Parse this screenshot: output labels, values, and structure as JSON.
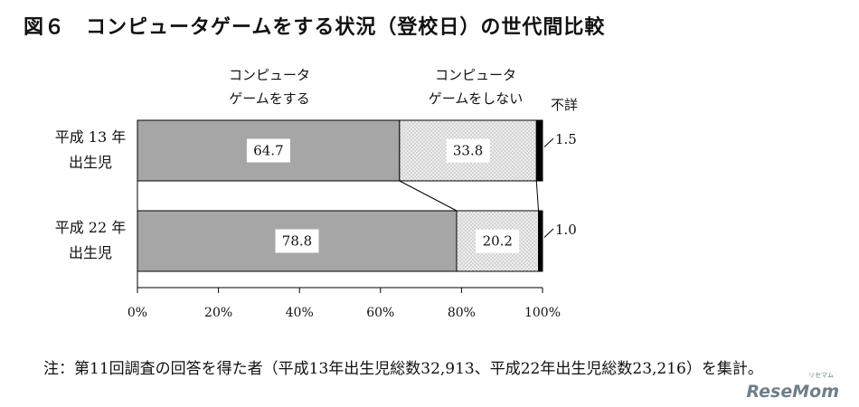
{
  "title": "図６　コンピュータゲームをする状況（登校日）の世代間比較",
  "footnote": "注：第11回調査の回答を得た者（平成13年出生児総数32,913、平成22年出生児総数23,216）を集計。",
  "watermark": "ReseMom",
  "watermark_sub": "リセマム",
  "chart_data": {
    "type": "bar",
    "orientation": "horizontal",
    "stacked": true,
    "title": "図６　コンピュータゲームをする状況（登校日）の世代間比較",
    "categories": [
      [
        "平成 13 年",
        "出生児"
      ],
      [
        "平成 22 年",
        "出生児"
      ]
    ],
    "series": [
      {
        "name": [
          "コンピュータ",
          "ゲームをする"
        ],
        "values": [
          64.7,
          78.8
        ],
        "color": "#a6a6a6"
      },
      {
        "name": [
          "コンピュータ",
          "ゲームをしない"
        ],
        "values": [
          33.8,
          20.2
        ],
        "color": "#ececec"
      },
      {
        "name": [
          "不詳"
        ],
        "values": [
          1.5,
          1.0
        ],
        "color": "#000000"
      }
    ],
    "value_labels": [
      [
        "64.7",
        "33.8",
        "1.5"
      ],
      [
        "78.8",
        "20.2",
        "1.0"
      ]
    ],
    "xaxis": {
      "range": [
        0,
        100
      ],
      "ticks": [
        0,
        20,
        40,
        60,
        80,
        100
      ],
      "tick_labels": [
        "0%",
        "20%",
        "40%",
        "60%",
        "80%",
        "100%"
      ]
    },
    "legend_placement": "top",
    "connector_lines": true
  }
}
